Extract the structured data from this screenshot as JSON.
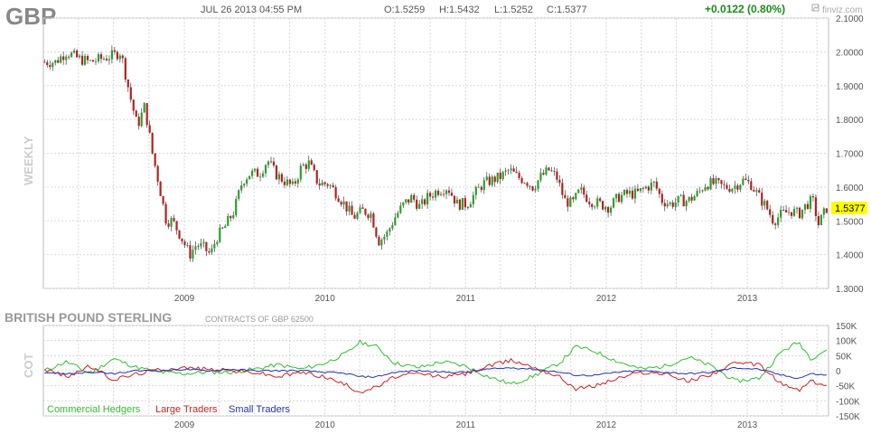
{
  "header": {
    "symbol": "GBP",
    "datetime": "JUL 26 2013 04:55 PM",
    "open": "O:1.5259",
    "high": "H:1.5432",
    "low": "L:1.5252",
    "close": "C:1.5377",
    "change": "+0.0122 (0.80%)",
    "brand": "finviz.com",
    "brand_icon": "chart-logo-icon"
  },
  "colors": {
    "up": "#2ca02c",
    "down": "#b22222",
    "last_price_bg": "#ffff00",
    "commercial": "#33bb33",
    "large": "#cc2222",
    "small": "#2233aa",
    "change": "#1a8c1a",
    "grid": "#d8d8d8"
  },
  "chart_data": [
    {
      "type": "candlestick",
      "title": "GBP",
      "period_label": "WEEKLY",
      "ylim": [
        1.3,
        2.1
      ],
      "y_ticks": [
        "2.1000",
        "2.0000",
        "1.9000",
        "1.8000",
        "1.7000",
        "1.6000",
        "1.5000",
        "1.4000",
        "1.3000"
      ],
      "x_ticks": [
        "2009",
        "2010",
        "2011",
        "2012",
        "2013"
      ],
      "last_price": "1.5377",
      "grid": true,
      "closes": [
        {
          "x": "2008-01-04",
          "y": 1.97
        },
        {
          "x": "2008-02-01",
          "y": 1.97
        },
        {
          "x": "2008-03-01",
          "y": 2.0
        },
        {
          "x": "2008-04-01",
          "y": 1.98
        },
        {
          "x": "2008-05-01",
          "y": 1.97
        },
        {
          "x": "2008-06-01",
          "y": 1.98
        },
        {
          "x": "2008-07-01",
          "y": 1.99
        },
        {
          "x": "2008-07-20",
          "y": 2.0
        },
        {
          "x": "2008-08-15",
          "y": 1.86
        },
        {
          "x": "2008-09-01",
          "y": 1.78
        },
        {
          "x": "2008-09-20",
          "y": 1.84
        },
        {
          "x": "2008-10-10",
          "y": 1.7
        },
        {
          "x": "2008-10-25",
          "y": 1.62
        },
        {
          "x": "2008-11-15",
          "y": 1.5
        },
        {
          "x": "2008-12-01",
          "y": 1.5
        },
        {
          "x": "2008-12-20",
          "y": 1.46
        },
        {
          "x": "2009-01-15",
          "y": 1.4
        },
        {
          "x": "2009-02-01",
          "y": 1.43
        },
        {
          "x": "2009-02-20",
          "y": 1.42
        },
        {
          "x": "2009-03-10",
          "y": 1.4
        },
        {
          "x": "2009-03-25",
          "y": 1.45
        },
        {
          "x": "2009-04-15",
          "y": 1.48
        },
        {
          "x": "2009-05-10",
          "y": 1.53
        },
        {
          "x": "2009-06-01",
          "y": 1.62
        },
        {
          "x": "2009-06-20",
          "y": 1.64
        },
        {
          "x": "2009-07-15",
          "y": 1.64
        },
        {
          "x": "2009-08-05",
          "y": 1.68
        },
        {
          "x": "2009-08-25",
          "y": 1.64
        },
        {
          "x": "2009-09-15",
          "y": 1.62
        },
        {
          "x": "2009-10-10",
          "y": 1.6
        },
        {
          "x": "2009-11-01",
          "y": 1.66
        },
        {
          "x": "2009-11-20",
          "y": 1.67
        },
        {
          "x": "2009-12-15",
          "y": 1.61
        },
        {
          "x": "2010-01-10",
          "y": 1.61
        },
        {
          "x": "2010-02-01",
          "y": 1.58
        },
        {
          "x": "2010-02-20",
          "y": 1.55
        },
        {
          "x": "2010-03-15",
          "y": 1.51
        },
        {
          "x": "2010-04-10",
          "y": 1.53
        },
        {
          "x": "2010-05-01",
          "y": 1.52
        },
        {
          "x": "2010-05-20",
          "y": 1.44
        },
        {
          "x": "2010-06-10",
          "y": 1.46
        },
        {
          "x": "2010-07-01",
          "y": 1.51
        },
        {
          "x": "2010-07-25",
          "y": 1.55
        },
        {
          "x": "2010-08-15",
          "y": 1.57
        },
        {
          "x": "2010-09-05",
          "y": 1.54
        },
        {
          "x": "2010-09-25",
          "y": 1.57
        },
        {
          "x": "2010-10-20",
          "y": 1.59
        },
        {
          "x": "2010-11-15",
          "y": 1.6
        },
        {
          "x": "2010-12-10",
          "y": 1.55
        },
        {
          "x": "2011-01-05",
          "y": 1.55
        },
        {
          "x": "2011-01-25",
          "y": 1.58
        },
        {
          "x": "2011-02-15",
          "y": 1.61
        },
        {
          "x": "2011-03-10",
          "y": 1.62
        },
        {
          "x": "2011-04-01",
          "y": 1.63
        },
        {
          "x": "2011-04-25",
          "y": 1.65
        },
        {
          "x": "2011-05-15",
          "y": 1.63
        },
        {
          "x": "2011-06-05",
          "y": 1.62
        },
        {
          "x": "2011-06-25",
          "y": 1.6
        },
        {
          "x": "2011-07-15",
          "y": 1.63
        },
        {
          "x": "2011-08-05",
          "y": 1.65
        },
        {
          "x": "2011-08-25",
          "y": 1.63
        },
        {
          "x": "2011-09-15",
          "y": 1.56
        },
        {
          "x": "2011-10-05",
          "y": 1.55
        },
        {
          "x": "2011-10-25",
          "y": 1.59
        },
        {
          "x": "2011-11-20",
          "y": 1.56
        },
        {
          "x": "2011-12-15",
          "y": 1.55
        },
        {
          "x": "2012-01-10",
          "y": 1.54
        },
        {
          "x": "2012-02-01",
          "y": 1.57
        },
        {
          "x": "2012-02-25",
          "y": 1.58
        },
        {
          "x": "2012-03-20",
          "y": 1.58
        },
        {
          "x": "2012-04-15",
          "y": 1.6
        },
        {
          "x": "2012-05-05",
          "y": 1.61
        },
        {
          "x": "2012-05-25",
          "y": 1.56
        },
        {
          "x": "2012-06-15",
          "y": 1.55
        },
        {
          "x": "2012-07-10",
          "y": 1.56
        },
        {
          "x": "2012-08-01",
          "y": 1.56
        },
        {
          "x": "2012-08-25",
          "y": 1.58
        },
        {
          "x": "2012-09-15",
          "y": 1.61
        },
        {
          "x": "2012-10-10",
          "y": 1.61
        },
        {
          "x": "2012-11-01",
          "y": 1.6
        },
        {
          "x": "2012-11-25",
          "y": 1.6
        },
        {
          "x": "2012-12-20",
          "y": 1.62
        },
        {
          "x": "2013-01-10",
          "y": 1.61
        },
        {
          "x": "2013-02-01",
          "y": 1.57
        },
        {
          "x": "2013-02-20",
          "y": 1.54
        },
        {
          "x": "2013-03-10",
          "y": 1.5
        },
        {
          "x": "2013-04-01",
          "y": 1.52
        },
        {
          "x": "2013-04-25",
          "y": 1.53
        },
        {
          "x": "2013-05-15",
          "y": 1.52
        },
        {
          "x": "2013-06-05",
          "y": 1.55
        },
        {
          "x": "2013-06-20",
          "y": 1.56
        },
        {
          "x": "2013-07-05",
          "y": 1.49
        },
        {
          "x": "2013-07-26",
          "y": 1.5377
        }
      ]
    },
    {
      "type": "line",
      "title": "BRITISH POUND STERLING",
      "subtitle": "CONTRACTS OF GBP 62500",
      "period_label": "COT",
      "ylim": [
        -150000,
        150000
      ],
      "y_ticks": [
        "150K",
        "100K",
        "50K",
        "0",
        "-50K",
        "-100K",
        "-150K"
      ],
      "x_ticks": [
        "2009",
        "2010",
        "2011",
        "2012",
        "2013"
      ],
      "grid": true,
      "series": [
        {
          "name": "Commercial Hedgers",
          "color": "#33bb33",
          "points": [
            {
              "x": "2008-01-04",
              "y": 0
            },
            {
              "x": "2008-03-01",
              "y": 30000
            },
            {
              "x": "2008-05-01",
              "y": -10000
            },
            {
              "x": "2008-07-01",
              "y": 40000
            },
            {
              "x": "2008-09-01",
              "y": 10000
            },
            {
              "x": "2008-11-01",
              "y": -5000
            },
            {
              "x": "2009-01-01",
              "y": -10000
            },
            {
              "x": "2009-03-01",
              "y": -5000
            },
            {
              "x": "2009-05-01",
              "y": -5000
            },
            {
              "x": "2009-07-01",
              "y": 5000
            },
            {
              "x": "2009-09-01",
              "y": 20000
            },
            {
              "x": "2009-11-01",
              "y": 5000
            },
            {
              "x": "2010-01-01",
              "y": 25000
            },
            {
              "x": "2010-03-01",
              "y": 60000
            },
            {
              "x": "2010-04-01",
              "y": 95000
            },
            {
              "x": "2010-05-15",
              "y": 80000
            },
            {
              "x": "2010-07-01",
              "y": 25000
            },
            {
              "x": "2010-09-01",
              "y": 10000
            },
            {
              "x": "2010-11-01",
              "y": 30000
            },
            {
              "x": "2011-01-01",
              "y": 15000
            },
            {
              "x": "2011-03-01",
              "y": -20000
            },
            {
              "x": "2011-05-01",
              "y": -45000
            },
            {
              "x": "2011-07-01",
              "y": -15000
            },
            {
              "x": "2011-09-01",
              "y": 25000
            },
            {
              "x": "2011-10-15",
              "y": 80000
            },
            {
              "x": "2011-12-01",
              "y": 65000
            },
            {
              "x": "2012-02-01",
              "y": 30000
            },
            {
              "x": "2012-04-01",
              "y": 5000
            },
            {
              "x": "2012-06-01",
              "y": 15000
            },
            {
              "x": "2012-08-01",
              "y": 45000
            },
            {
              "x": "2012-10-01",
              "y": 15000
            },
            {
              "x": "2012-12-01",
              "y": -35000
            },
            {
              "x": "2013-02-01",
              "y": -25000
            },
            {
              "x": "2013-04-01",
              "y": 65000
            },
            {
              "x": "2013-05-15",
              "y": 95000
            },
            {
              "x": "2013-06-15",
              "y": 40000
            },
            {
              "x": "2013-07-26",
              "y": 70000
            }
          ]
        },
        {
          "name": "Large Traders",
          "color": "#cc2222",
          "points": [
            {
              "x": "2008-01-04",
              "y": 5000
            },
            {
              "x": "2008-03-01",
              "y": -20000
            },
            {
              "x": "2008-05-01",
              "y": 15000
            },
            {
              "x": "2008-07-01",
              "y": -30000
            },
            {
              "x": "2008-09-01",
              "y": -10000
            },
            {
              "x": "2008-11-01",
              "y": 5000
            },
            {
              "x": "2009-01-01",
              "y": 10000
            },
            {
              "x": "2009-03-01",
              "y": 5000
            },
            {
              "x": "2009-05-01",
              "y": 0
            },
            {
              "x": "2009-07-01",
              "y": -5000
            },
            {
              "x": "2009-09-01",
              "y": -20000
            },
            {
              "x": "2009-11-01",
              "y": -5000
            },
            {
              "x": "2010-01-01",
              "y": -20000
            },
            {
              "x": "2010-03-01",
              "y": -50000
            },
            {
              "x": "2010-04-01",
              "y": -70000
            },
            {
              "x": "2010-05-15",
              "y": -55000
            },
            {
              "x": "2010-07-01",
              "y": -20000
            },
            {
              "x": "2010-09-01",
              "y": -10000
            },
            {
              "x": "2010-11-01",
              "y": -20000
            },
            {
              "x": "2011-01-01",
              "y": -10000
            },
            {
              "x": "2011-03-01",
              "y": 15000
            },
            {
              "x": "2011-05-01",
              "y": 35000
            },
            {
              "x": "2011-07-01",
              "y": 10000
            },
            {
              "x": "2011-09-01",
              "y": -20000
            },
            {
              "x": "2011-10-15",
              "y": -60000
            },
            {
              "x": "2011-12-01",
              "y": -50000
            },
            {
              "x": "2012-02-01",
              "y": -25000
            },
            {
              "x": "2012-04-01",
              "y": -5000
            },
            {
              "x": "2012-06-01",
              "y": -10000
            },
            {
              "x": "2012-08-01",
              "y": -35000
            },
            {
              "x": "2012-10-01",
              "y": -10000
            },
            {
              "x": "2012-12-01",
              "y": 25000
            },
            {
              "x": "2013-02-01",
              "y": 20000
            },
            {
              "x": "2013-04-01",
              "y": -45000
            },
            {
              "x": "2013-05-15",
              "y": -65000
            },
            {
              "x": "2013-06-15",
              "y": -35000
            },
            {
              "x": "2013-07-26",
              "y": -50000
            }
          ]
        },
        {
          "name": "Small Traders",
          "color": "#2233aa",
          "points": [
            {
              "x": "2008-01-04",
              "y": -5000
            },
            {
              "x": "2008-03-01",
              "y": -10000
            },
            {
              "x": "2008-05-01",
              "y": -5000
            },
            {
              "x": "2008-07-01",
              "y": -10000
            },
            {
              "x": "2008-09-01",
              "y": 0
            },
            {
              "x": "2008-11-01",
              "y": 0
            },
            {
              "x": "2009-01-01",
              "y": 5000
            },
            {
              "x": "2009-03-01",
              "y": 0
            },
            {
              "x": "2009-05-01",
              "y": 5000
            },
            {
              "x": "2009-07-01",
              "y": 0
            },
            {
              "x": "2009-09-01",
              "y": 0
            },
            {
              "x": "2009-11-01",
              "y": 0
            },
            {
              "x": "2010-01-01",
              "y": -5000
            },
            {
              "x": "2010-03-01",
              "y": -10000
            },
            {
              "x": "2010-04-01",
              "y": -20000
            },
            {
              "x": "2010-05-15",
              "y": -20000
            },
            {
              "x": "2010-07-01",
              "y": -5000
            },
            {
              "x": "2010-09-01",
              "y": 0
            },
            {
              "x": "2010-11-01",
              "y": -5000
            },
            {
              "x": "2011-01-01",
              "y": -5000
            },
            {
              "x": "2011-03-01",
              "y": 5000
            },
            {
              "x": "2011-05-01",
              "y": 10000
            },
            {
              "x": "2011-07-01",
              "y": 5000
            },
            {
              "x": "2011-09-01",
              "y": -5000
            },
            {
              "x": "2011-10-15",
              "y": -15000
            },
            {
              "x": "2011-12-01",
              "y": -15000
            },
            {
              "x": "2012-02-01",
              "y": -5000
            },
            {
              "x": "2012-04-01",
              "y": 0
            },
            {
              "x": "2012-06-01",
              "y": -5000
            },
            {
              "x": "2012-08-01",
              "y": -10000
            },
            {
              "x": "2012-10-01",
              "y": -5000
            },
            {
              "x": "2012-12-01",
              "y": 10000
            },
            {
              "x": "2013-02-01",
              "y": 5000
            },
            {
              "x": "2013-04-01",
              "y": -15000
            },
            {
              "x": "2013-05-15",
              "y": -25000
            },
            {
              "x": "2013-06-15",
              "y": -10000
            },
            {
              "x": "2013-07-26",
              "y": -15000
            }
          ]
        }
      ]
    }
  ]
}
